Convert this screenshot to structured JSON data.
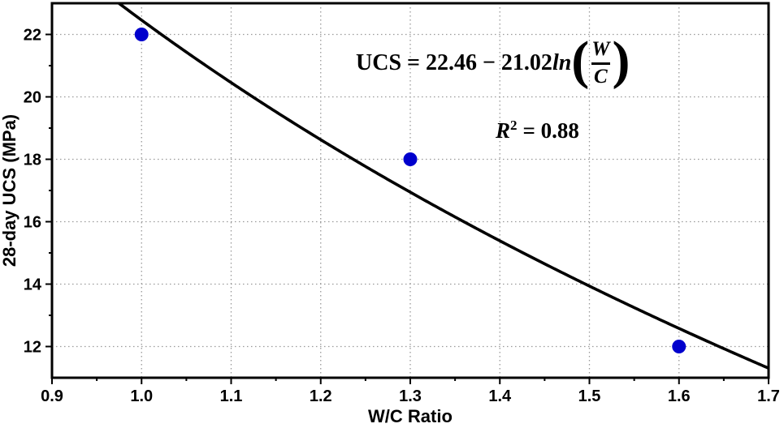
{
  "chart_data": {
    "type": "scatter",
    "title": "",
    "xlabel": "W/C Ratio",
    "ylabel": "28-day UCS (MPa)",
    "x": [
      1.0,
      1.3,
      1.6
    ],
    "y": [
      22,
      18,
      12
    ],
    "xlim": [
      0.9,
      1.7
    ],
    "ylim": [
      11,
      23
    ],
    "xticks": [
      0.9,
      1.0,
      1.1,
      1.2,
      1.3,
      1.4,
      1.5,
      1.6,
      1.7
    ],
    "xtick_labels": [
      "0.9",
      "1.0",
      "1.1",
      "1.2",
      "1.3",
      "1.4",
      "1.5",
      "1.6",
      "1.7"
    ],
    "xminor": [
      0.95,
      1.05,
      1.15,
      1.25,
      1.35,
      1.45,
      1.55,
      1.65
    ],
    "yticks": [
      12,
      14,
      16,
      18,
      20,
      22
    ],
    "ytick_labels": [
      "12",
      "14",
      "16",
      "18",
      "20",
      "22"
    ],
    "yminor": [
      13,
      15,
      17,
      19,
      21
    ],
    "grid": "dotted",
    "legend": "none",
    "fit": {
      "type": "logarithmic",
      "intercept": 22.46,
      "coef": -21.02,
      "equation": "UCS = 22.46 − 21.02·ln(W/C)",
      "r_squared": 0.88
    },
    "colors": {
      "point": "#0000CD",
      "curve": "#000000",
      "grid": "#999999",
      "frame": "#000000",
      "text": "#000000"
    }
  },
  "annotations": {
    "eq_lhs": "UCS = 22.46 − 21.02",
    "eq_ln": "ln",
    "paren_open": "(",
    "paren_close": ")",
    "frac_num": "W",
    "frac_den": "C",
    "r2_var": "R",
    "r2_sup": "2",
    "r2_rest": "= 0.88"
  }
}
